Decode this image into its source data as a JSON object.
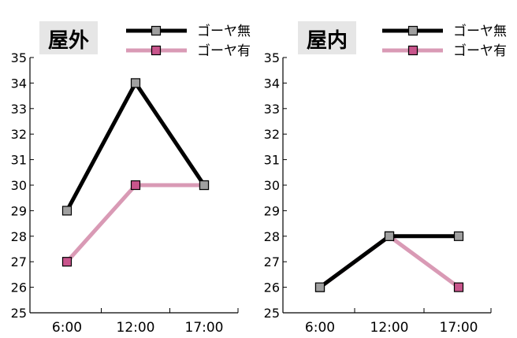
{
  "chart_data": [
    {
      "type": "line",
      "title": "屋外",
      "categories": [
        "6:00",
        "12:00",
        "17:00"
      ],
      "ylim": [
        25,
        35
      ],
      "yticks": [
        25,
        26,
        27,
        28,
        29,
        30,
        31,
        32,
        33,
        34,
        35
      ],
      "series": [
        {
          "name": "ゴーヤ無",
          "values": [
            29,
            34,
            30
          ],
          "color": "#000000",
          "marker_color": "#a0a0a0"
        },
        {
          "name": "ゴーヤ有",
          "values": [
            27,
            30,
            30
          ],
          "color": "#d99ab5",
          "marker_color": "#c9558c"
        }
      ],
      "grid": false,
      "legend": "top-right"
    },
    {
      "type": "line",
      "title": "屋内",
      "categories": [
        "6:00",
        "12:00",
        "17:00"
      ],
      "ylim": [
        25,
        35
      ],
      "yticks": [
        25,
        26,
        27,
        28,
        29,
        30,
        31,
        32,
        33,
        34,
        35
      ],
      "series": [
        {
          "name": "ゴーヤ無",
          "values": [
            26,
            28,
            28
          ],
          "color": "#000000",
          "marker_color": "#a0a0a0"
        },
        {
          "name": "ゴーヤ有",
          "values": [
            26,
            28,
            26
          ],
          "color": "#d99ab5",
          "marker_color": "#c9558c"
        }
      ],
      "grid": false,
      "legend": "top-right"
    }
  ]
}
